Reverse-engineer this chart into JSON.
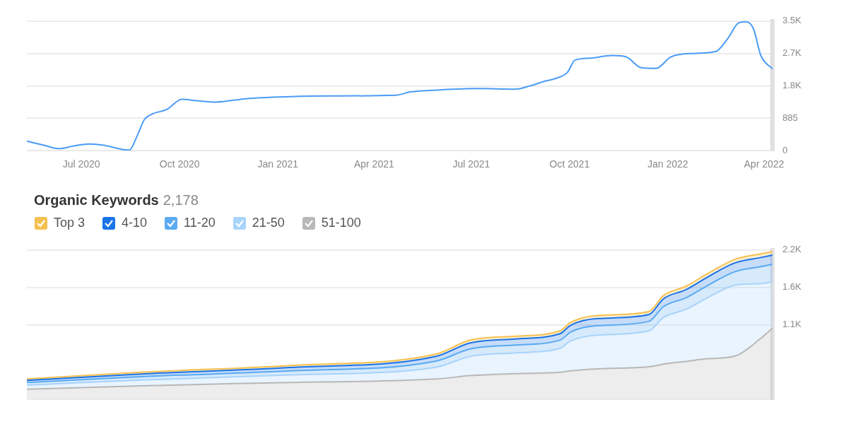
{
  "chart_data": [
    {
      "type": "line",
      "x": [
        "2020-05-11",
        "2020-05-27",
        "2020-06-10",
        "2020-06-24",
        "2020-07-08",
        "2020-07-22",
        "2020-08-05",
        "2020-08-15",
        "2020-08-22",
        "2020-08-29",
        "2020-09-05",
        "2020-09-19",
        "2020-10-03",
        "2020-10-17",
        "2020-11-04",
        "2020-12-02",
        "2021-01-13",
        "2021-02-17",
        "2021-04-21",
        "2021-05-05",
        "2021-06-02",
        "2021-07-07",
        "2021-08-11",
        "2021-08-25",
        "2021-09-08",
        "2021-09-18",
        "2021-09-29",
        "2021-10-06",
        "2021-10-20",
        "2021-11-10",
        "2021-11-23",
        "2021-12-07",
        "2021-12-21",
        "2022-01-04",
        "2022-01-25",
        "2022-02-15",
        "2022-02-26",
        "2022-03-08",
        "2022-03-15",
        "2022-03-22",
        "2022-03-29",
        "2022-04-09"
      ],
      "series": [
        {
          "color": "#4a9cf5",
          "values": [
            258,
            148,
            55,
            129,
            184,
            148,
            55,
            18,
            387,
            848,
            996,
            1125,
            1401,
            1364,
            1328,
            1420,
            1475,
            1494,
            1512,
            1604,
            1660,
            1696,
            1678,
            1770,
            1899,
            1973,
            2139,
            2471,
            2526,
            2600,
            2563,
            2268,
            2250,
            2563,
            2655,
            2711,
            3061,
            3485,
            3522,
            3338,
            2600,
            2231
          ]
        }
      ],
      "xlim": [
        "2020-05-11",
        "2022-04-09"
      ],
      "xticks": [
        {
          "value": "2020-07-01",
          "label": "Jul 2020"
        },
        {
          "value": "2020-10-01",
          "label": "Oct 2020"
        },
        {
          "value": "2021-01-01",
          "label": "Jan 2021"
        },
        {
          "value": "2021-04-01",
          "label": "Apr 2021"
        },
        {
          "value": "2021-07-01",
          "label": "Jul 2021"
        },
        {
          "value": "2021-10-01",
          "label": "Oct 2021"
        },
        {
          "value": "2022-01-01",
          "label": "Jan 2022"
        },
        {
          "value": "2022-04-01",
          "label": "Apr 2022"
        }
      ],
      "ylim": [
        0,
        3540
      ],
      "yticks": [
        0,
        885,
        {
          "value": 1770,
          "label": "1.8K"
        },
        {
          "value": 2655,
          "label": "2.7K"
        },
        {
          "value": 3540,
          "label": "3.5K"
        }
      ],
      "grid": "y",
      "legend": false,
      "marker": "none",
      "line_style": "solid"
    },
    {
      "type": "area",
      "title": "Organic Keywords",
      "subtitle": "2,178",
      "stacked": true,
      "x": [
        "2020-05-11",
        "2020-08-26",
        "2021-01-13",
        "2021-05-29",
        "2021-06-30",
        "2021-08-11",
        "2021-09-22",
        "2021-10-02",
        "2021-10-27",
        "2021-12-14",
        "2021-12-28",
        "2022-01-18",
        "2022-02-08",
        "2022-03-05",
        "2022-03-29",
        "2022-04-09"
      ],
      "series": [
        {
          "name": "51-100",
          "color": "#b8b8b8",
          "values": [
            150,
            200,
            250,
            300,
            350,
            380,
            400,
            420,
            450,
            480,
            520,
            560,
            600,
            640,
            900,
            1050
          ]
        },
        {
          "name": "21-50",
          "color": "#a9d3fa",
          "values": [
            60,
            85,
            110,
            174,
            283,
            305,
            352,
            442,
            496,
            528,
            688,
            767,
            905,
            1042,
            805,
            680
          ]
        },
        {
          "name": "11-20",
          "color": "#5aaaf2",
          "values": [
            40,
            50,
            60,
            90,
            110,
            115,
            120,
            130,
            140,
            140,
            160,
            170,
            180,
            200,
            250,
            260
          ]
        },
        {
          "name": "4-10",
          "color": "#1a73e8",
          "values": [
            30,
            40,
            50,
            70,
            90,
            90,
            95,
            100,
            105,
            100,
            115,
            120,
            125,
            130,
            135,
            135
          ]
        },
        {
          "name": "Top 3",
          "color": "#f5c04f",
          "values": [
            20,
            25,
            30,
            35,
            40,
            40,
            42,
            42,
            45,
            45,
            48,
            50,
            50,
            52,
            53,
            53
          ]
        }
      ],
      "xlim": [
        "2020-05-11",
        "2022-04-09"
      ],
      "ylim": [
        0,
        2200
      ],
      "yticks": [
        {
          "value": 1100,
          "label": "1.1K"
        },
        {
          "value": 1650,
          "label": "1.6K"
        },
        {
          "value": 2200,
          "label": "2.2K"
        }
      ],
      "tick_labels": "y",
      "grid": "y",
      "legend": "top left",
      "marker": "none"
    }
  ]
}
